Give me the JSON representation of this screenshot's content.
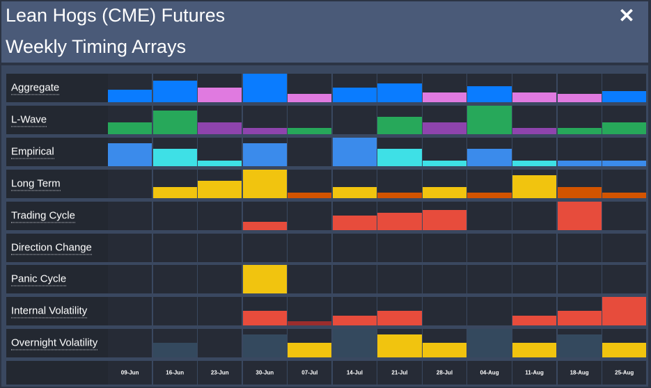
{
  "header": {
    "title": "Lean Hogs (CME) Futures",
    "subtitle": "Weekly Timing Arrays",
    "close_icon": "close-icon"
  },
  "colors": {
    "blue": "#0a7cff",
    "pink": "#e07ae0",
    "green": "#27a85a",
    "purple": "#8e44ad",
    "lightblue": "#3b8beb",
    "cyan": "#3ee0e6",
    "yellow": "#f1c40f",
    "orange": "#d35400",
    "red": "#e74c3c",
    "darkred": "#9b2d2d",
    "slate": "#34495e"
  },
  "dates": [
    "09-Jun",
    "16-Jun",
    "23-Jun",
    "30-Jun",
    "07-Jul",
    "14-Jul",
    "21-Jul",
    "28-Jul",
    "04-Aug",
    "11-Aug",
    "18-Aug",
    "25-Aug"
  ],
  "rows": [
    {
      "label": "Aggregate",
      "levels": [
        0.45,
        0.75,
        0.5,
        1.0,
        0.3,
        0.5,
        0.65,
        0.35,
        0.55,
        0.35,
        0.3,
        0.38
      ],
      "colors": [
        "blue",
        "blue",
        "pink",
        "blue",
        "pink",
        "blue",
        "blue",
        "pink",
        "blue",
        "pink",
        "pink",
        "blue"
      ]
    },
    {
      "label": "L-Wave",
      "levels": [
        0.42,
        0.82,
        0.42,
        0.22,
        0.22,
        0,
        0.6,
        0.42,
        1.0,
        0.22,
        0.22,
        0.42
      ],
      "colors": [
        "green",
        "green",
        "purple",
        "purple",
        "green",
        "green",
        "green",
        "purple",
        "green",
        "purple",
        "green",
        "green"
      ]
    },
    {
      "label": "Empirical",
      "levels": [
        0.8,
        0.6,
        0.2,
        0.8,
        0,
        1.0,
        0.6,
        0.2,
        0.6,
        0.2,
        0.2,
        0.2
      ],
      "colors": [
        "lightblue",
        "cyan",
        "cyan",
        "lightblue",
        "cyan",
        "lightblue",
        "cyan",
        "cyan",
        "lightblue",
        "cyan",
        "lightblue",
        "lightblue"
      ]
    },
    {
      "label": "Long Term",
      "levels": [
        0,
        0.4,
        0.6,
        1.0,
        0.2,
        0.4,
        0.2,
        0.4,
        0.2,
        0.8,
        0.4,
        0.2
      ],
      "colors": [
        "yellow",
        "yellow",
        "yellow",
        "yellow",
        "orange",
        "yellow",
        "orange",
        "yellow",
        "orange",
        "yellow",
        "orange",
        "orange"
      ]
    },
    {
      "label": "Trading Cycle",
      "levels": [
        0,
        0,
        0,
        0.3,
        0,
        0.5,
        0.6,
        0.7,
        0,
        0,
        1.0,
        0
      ],
      "colors": [
        "red",
        "red",
        "red",
        "red",
        "red",
        "red",
        "red",
        "red",
        "red",
        "red",
        "red",
        "red"
      ]
    },
    {
      "label": "Direction Change",
      "levels": [
        0,
        0,
        0,
        0,
        0,
        0,
        0,
        0,
        0,
        0,
        0,
        0
      ],
      "colors": [
        "red",
        "red",
        "red",
        "red",
        "red",
        "red",
        "red",
        "red",
        "red",
        "red",
        "red",
        "red"
      ]
    },
    {
      "label": "Panic Cycle",
      "levels": [
        0,
        0,
        0,
        1.0,
        0,
        0,
        0,
        0,
        0,
        0,
        0,
        0
      ],
      "colors": [
        "yellow",
        "yellow",
        "yellow",
        "yellow",
        "yellow",
        "yellow",
        "yellow",
        "yellow",
        "yellow",
        "yellow",
        "yellow",
        "yellow"
      ]
    },
    {
      "label": "Internal Volatility",
      "levels": [
        0,
        0,
        0,
        0.5,
        0.15,
        0.33,
        0.5,
        0,
        0,
        0.33,
        0.5,
        1.0
      ],
      "colors": [
        "red",
        "red",
        "red",
        "red",
        "darkred",
        "red",
        "red",
        "red",
        "red",
        "red",
        "red",
        "red"
      ]
    },
    {
      "label": "Overnight Volatility",
      "levels": [
        0,
        0.5,
        0,
        0.8,
        0.5,
        1.0,
        0.8,
        0.5,
        1.0,
        0.5,
        0.8,
        0.5
      ],
      "colors": [
        "slate",
        "slate",
        "slate",
        "slate",
        "yellow",
        "slate",
        "yellow",
        "yellow",
        "slate",
        "yellow",
        "slate",
        "yellow"
      ]
    }
  ]
}
